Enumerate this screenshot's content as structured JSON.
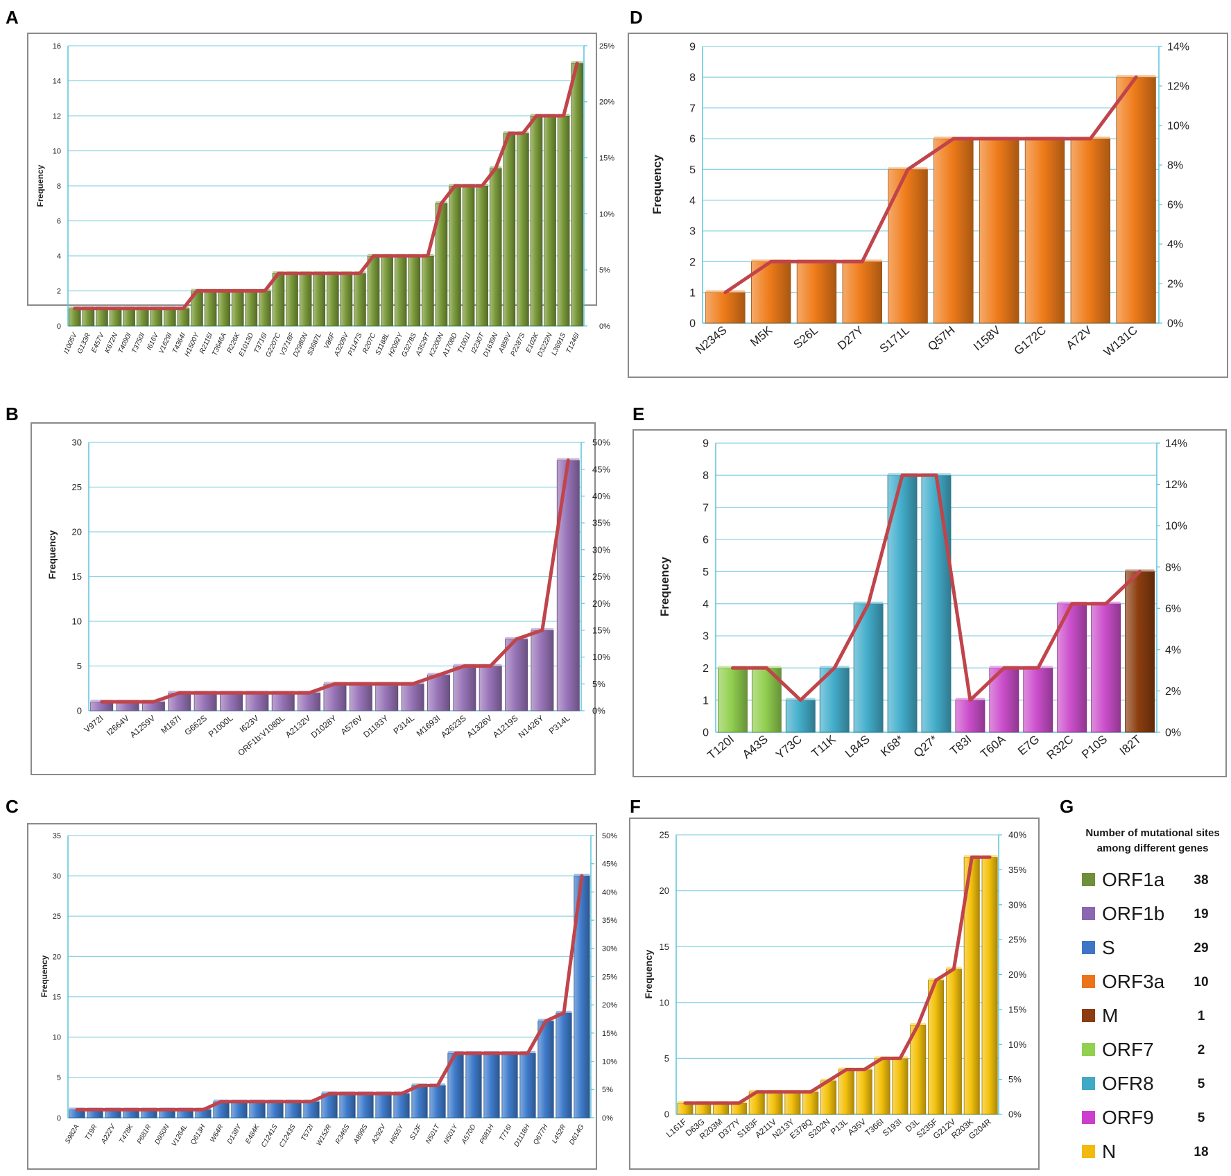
{
  "chart_data": [
    {
      "panel": "A",
      "type": "bar",
      "ylabel": "Frequency",
      "ylim": [
        0,
        16
      ],
      "yticks": [
        0,
        2,
        4,
        6,
        8,
        10,
        12,
        14,
        16
      ],
      "y2ticks": [
        "0%",
        "5%",
        "10%",
        "15%",
        "20%",
        "25%"
      ],
      "color": "#7a9a3a",
      "line_color": "#c0444a",
      "categories": [
        "I1005V",
        "G133R",
        "E457V",
        "K672N",
        "T4090I",
        "T3750I",
        "I616V",
        "V1629I",
        "T4364I",
        "H1500Y",
        "R2115I",
        "T3646A",
        "R226K",
        "E1013D",
        "T3716I",
        "G2207C",
        "V3718F",
        "D2980N",
        "S3687L",
        "V86F",
        "A3209V",
        "P1147S",
        "R207C",
        "S1188L",
        "H2092Y",
        "G3278S",
        "A3529T",
        "K2200N",
        "A1708D",
        "T1001I",
        "I2230T",
        "D1639N",
        "A859V",
        "P2287S",
        "E102K",
        "D3222N",
        "L3691S",
        "T1246I"
      ],
      "values": [
        1,
        1,
        1,
        1,
        1,
        1,
        1,
        1,
        1,
        2,
        2,
        2,
        2,
        2,
        2,
        3,
        3,
        3,
        3,
        3,
        3,
        3,
        4,
        4,
        4,
        4,
        4,
        7,
        8,
        8,
        8,
        9,
        11,
        11,
        12,
        12,
        12,
        15
      ]
    },
    {
      "panel": "B",
      "type": "bar",
      "ylabel": "Frequency",
      "ylim": [
        0,
        30
      ],
      "yticks": [
        0,
        5,
        10,
        15,
        20,
        25,
        30
      ],
      "y2ticks": [
        "0%",
        "5%",
        "10%",
        "15%",
        "20%",
        "25%",
        "30%",
        "35%",
        "40%",
        "45%",
        "50%"
      ],
      "color": "#9874b8",
      "line_color": "#c0444a",
      "categories": [
        "V972I",
        "I2664V",
        "A1259V",
        "M187I",
        "G662S",
        "P1000L",
        "I623V",
        "ORF1b:V1080L",
        "A2132V",
        "D1028Y",
        "A576V",
        "D1183Y",
        "P314L",
        "M1693I",
        "A2623S",
        "A1326V",
        "A1219S",
        "N1426Y",
        "P314L"
      ],
      "values": [
        1,
        1,
        1,
        2,
        2,
        2,
        2,
        2,
        2,
        3,
        3,
        3,
        3,
        4,
        5,
        5,
        8,
        9,
        28
      ]
    },
    {
      "panel": "C",
      "type": "bar",
      "ylabel": "Frequency",
      "ylim": [
        0,
        35
      ],
      "yticks": [
        0,
        5,
        10,
        15,
        20,
        25,
        30,
        35
      ],
      "y2ticks": [
        "0%",
        "5%",
        "10%",
        "15%",
        "20%",
        "25%",
        "30%",
        "35%",
        "40%",
        "45%",
        "50%"
      ],
      "color": "#3f7ccc",
      "line_color": "#c0444a",
      "categories": [
        "S982A",
        "T19R",
        "A222V",
        "T478K",
        "P681R",
        "D950N",
        "V1264L",
        "Q613H",
        "W64R",
        "D138Y",
        "E484K",
        "C1241S",
        "C1243S",
        "T572I",
        "W152R",
        "R346S",
        "A899S",
        "A292V",
        "H655Y",
        "S12F",
        "N501T",
        "N501Y",
        "A570D",
        "P681H",
        "T716I",
        "D1118H",
        "Q677H",
        "L452R",
        "D614G"
      ],
      "values": [
        1,
        1,
        1,
        1,
        1,
        1,
        1,
        1,
        2,
        2,
        2,
        2,
        2,
        2,
        3,
        3,
        3,
        3,
        3,
        4,
        4,
        8,
        8,
        8,
        8,
        8,
        12,
        13,
        30
      ]
    },
    {
      "panel": "D",
      "type": "bar",
      "ylabel": "Frequency",
      "ylim": [
        0,
        9
      ],
      "yticks": [
        0,
        1,
        2,
        3,
        4,
        5,
        6,
        7,
        8,
        9
      ],
      "y2ticks": [
        "0%",
        "2%",
        "4%",
        "6%",
        "8%",
        "10%",
        "12%",
        "14%"
      ],
      "color": "#f07c1a",
      "line_color": "#c0444a",
      "categories": [
        "N234S",
        "M5K",
        "S26L",
        "D27Y",
        "S171L",
        "Q57H",
        "I158V",
        "G172C",
        "A72V",
        "W131C"
      ],
      "values": [
        1,
        2,
        2,
        2,
        5,
        6,
        6,
        6,
        6,
        8
      ]
    },
    {
      "panel": "E",
      "type": "bar",
      "ylabel": "Frequency",
      "ylim": [
        0,
        9
      ],
      "yticks": [
        0,
        1,
        2,
        3,
        4,
        5,
        6,
        7,
        8,
        9
      ],
      "y2ticks": [
        "0%",
        "2%",
        "4%",
        "6%",
        "8%",
        "10%",
        "12%",
        "14%"
      ],
      "line_color": "#c0444a",
      "categories": [
        "T120I",
        "A43S",
        "Y73C",
        "T11K",
        "L84S",
        "K68*",
        "Q27*",
        "T83I",
        "T60A",
        "E7G",
        "R32C",
        "P10S",
        "I82T"
      ],
      "values": [
        2,
        2,
        1,
        2,
        4,
        8,
        8,
        1,
        2,
        2,
        4,
        4,
        5
      ],
      "colors": [
        "#92d050",
        "#92d050",
        "#44afcc",
        "#44afcc",
        "#44afcc",
        "#44afcc",
        "#44afcc",
        "#cc4fcc",
        "#cc4fcc",
        "#cc4fcc",
        "#cc4fcc",
        "#cc4fcc",
        "#8b3d0f"
      ]
    },
    {
      "panel": "F",
      "type": "bar",
      "ylabel": "Frequency",
      "ylim": [
        0,
        25
      ],
      "yticks": [
        0,
        5,
        10,
        15,
        20,
        25
      ],
      "y2ticks": [
        "0%",
        "5%",
        "10%",
        "15%",
        "20%",
        "25%",
        "30%",
        "35%",
        "40%"
      ],
      "color": "#f4c20d",
      "line_color": "#c0444a",
      "categories": [
        "L161F",
        "D63G",
        "R203M",
        "D377Y",
        "S183F",
        "A211V",
        "N213Y",
        "E378Q",
        "S202N",
        "P13L",
        "A35V",
        "T366I",
        "S193I",
        "D3L",
        "S235F",
        "G212V",
        "R203K",
        "G204R"
      ],
      "values": [
        1,
        1,
        1,
        1,
        2,
        2,
        2,
        2,
        3,
        4,
        4,
        5,
        5,
        8,
        12,
        13,
        23,
        23
      ]
    }
  ],
  "legend": {
    "panel": "G",
    "title_line1": "Number of mutational sites",
    "title_line2": "among different genes",
    "items": [
      {
        "name": "ORF1a",
        "count": "38",
        "color": "#6f8f3a"
      },
      {
        "name": "ORF1b",
        "count": "19",
        "color": "#8a67b0"
      },
      {
        "name": "S",
        "count": "29",
        "color": "#3f75c6"
      },
      {
        "name": "ORF3a",
        "count": "10",
        "color": "#ec7318"
      },
      {
        "name": "M",
        "count": "1",
        "color": "#8b3d0f"
      },
      {
        "name": "ORF7",
        "count": "2",
        "color": "#92d050"
      },
      {
        "name": "OFR8",
        "count": "5",
        "color": "#3fa9c6"
      },
      {
        "name": "ORF9",
        "count": "5",
        "color": "#cc3fcc"
      },
      {
        "name": "N",
        "count": "18",
        "color": "#f2b90f"
      }
    ]
  }
}
